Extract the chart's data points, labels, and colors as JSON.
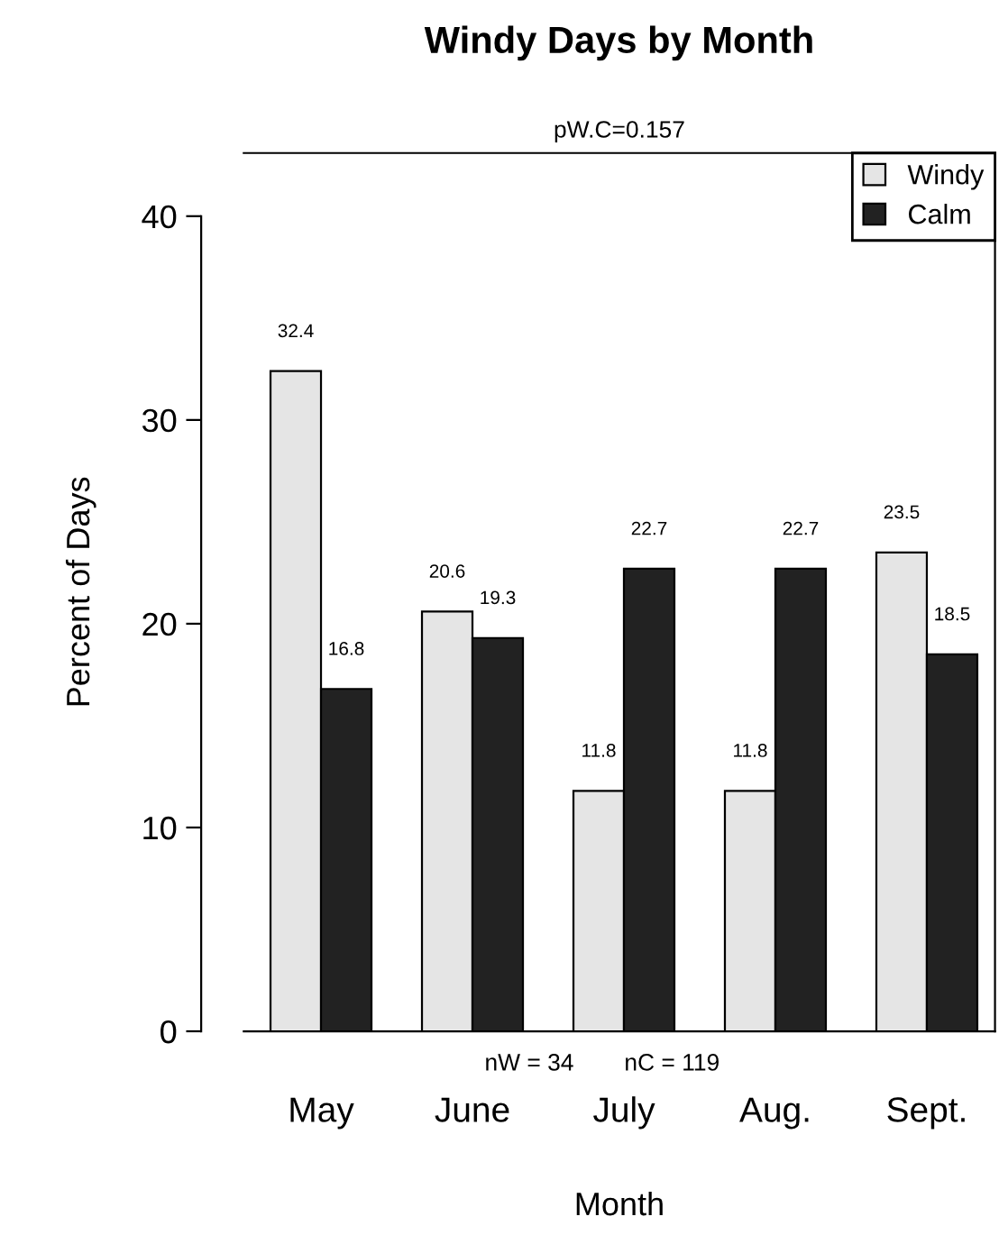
{
  "chart_data": {
    "type": "bar",
    "title": "Windy Days by Month",
    "xlabel": "Month",
    "ylabel": "Percent of Days",
    "categories": [
      "May",
      "June",
      "July",
      "Aug.",
      "Sept."
    ],
    "series": [
      {
        "name": "Windy",
        "color": "#e5e5e5",
        "values": [
          32.4,
          20.6,
          11.8,
          11.8,
          23.5
        ]
      },
      {
        "name": "Calm",
        "color": "#222222",
        "values": [
          16.8,
          19.3,
          22.7,
          22.7,
          18.5
        ]
      }
    ],
    "ylim": [
      0,
      43.1
    ],
    "yticks": [
      0,
      10,
      20,
      30,
      40
    ],
    "data_labels": true,
    "legend": "top right",
    "grid": false,
    "annotations": [
      "pW.C=0.157",
      "nW = 34",
      "nC = 119"
    ]
  }
}
